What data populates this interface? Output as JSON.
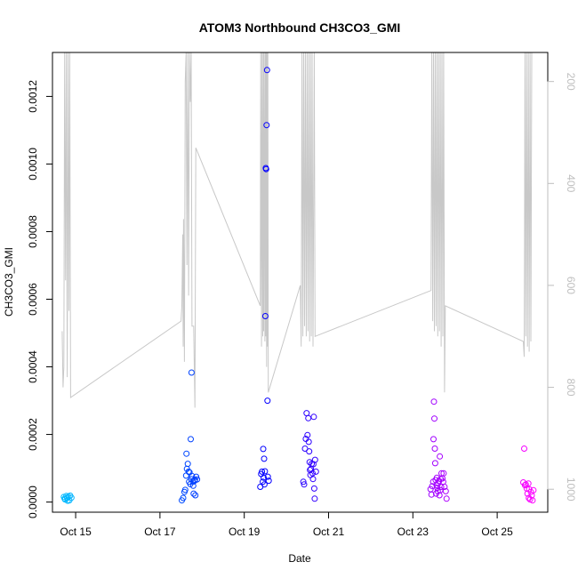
{
  "chart_data": {
    "type": "scatter",
    "title": "ATOM3 Northbound CH3CO3_GMI",
    "xlabel": "Date",
    "ylabel": "CH3CO3_GMI",
    "x_unit": "day of October",
    "xlim": [
      14.45,
      26.2
    ],
    "ylim": [
      -3e-05,
      0.00133
    ],
    "x_ticks": [
      {
        "value": 15,
        "label": "Oct 15"
      },
      {
        "value": 17,
        "label": "Oct 17"
      },
      {
        "value": 19,
        "label": "Oct 19"
      },
      {
        "value": 21,
        "label": "Oct 21"
      },
      {
        "value": 23,
        "label": "Oct 23"
      },
      {
        "value": 25,
        "label": "Oct 25"
      }
    ],
    "y_ticks": [
      {
        "value": 0.0,
        "label": "0.0000"
      },
      {
        "value": 0.0002,
        "label": "0.0002"
      },
      {
        "value": 0.0004,
        "label": "0.0004"
      },
      {
        "value": 0.0006,
        "label": "0.0006"
      },
      {
        "value": 0.0008,
        "label": "0.0008"
      },
      {
        "value": 0.001,
        "label": "0.0010"
      },
      {
        "value": 0.0012,
        "label": "0.0012"
      }
    ],
    "secondary_axis": {
      "position": "right",
      "reversed": true,
      "color": "#bebebe",
      "ylim": [
        1045,
        143
      ],
      "ticks": [
        {
          "value": 200,
          "label": "200"
        },
        {
          "value": 400,
          "label": "400"
        },
        {
          "value": 600,
          "label": "600"
        },
        {
          "value": 800,
          "label": "800"
        },
        {
          "value": 1000,
          "label": "1000"
        }
      ]
    },
    "series": [
      {
        "kind": "points",
        "color_scale": [
          "#00bfff",
          "#0000ff",
          "#ff00ff"
        ],
        "color_domain": [
          14.6,
          19.4,
          25.9
        ],
        "points": [
          [
            14.72,
            1.5e-05
          ],
          [
            14.75,
            8e-06
          ],
          [
            14.78,
            1.8e-05
          ],
          [
            14.8,
            1.2e-05
          ],
          [
            14.83,
            1.6e-05
          ],
          [
            14.85,
            5e-06
          ],
          [
            14.87,
            1.9e-05
          ],
          [
            14.74,
            1e-05
          ],
          [
            14.9,
            1.3e-05
          ],
          [
            14.81,
            4e-06
          ],
          [
            17.52,
            5e-06
          ],
          [
            17.55,
            1.2e-05
          ],
          [
            17.58,
            3e-05
          ],
          [
            17.6,
            3.6e-05
          ],
          [
            17.62,
            7.8e-05
          ],
          [
            17.63,
            0.000143
          ],
          [
            17.64,
            9.8e-05
          ],
          [
            17.66,
            0.000113
          ],
          [
            17.68,
            9e-05
          ],
          [
            17.69,
            6e-05
          ],
          [
            17.7,
            8.8e-05
          ],
          [
            17.72,
            5.3e-05
          ],
          [
            17.73,
            0.000186
          ],
          [
            17.74,
            6.8e-05
          ],
          [
            17.75,
            0.000383
          ],
          [
            17.76,
            7.7e-05
          ],
          [
            17.78,
            6e-05
          ],
          [
            17.79,
            4.8e-05
          ],
          [
            17.8,
            2.5e-05
          ],
          [
            17.82,
            6.3e-05
          ],
          [
            17.83,
            6.6e-05
          ],
          [
            17.84,
            2e-05
          ],
          [
            17.86,
            7.5e-05
          ],
          [
            17.88,
            6.7e-05
          ],
          [
            19.38,
            4.5e-05
          ],
          [
            19.4,
            8.3e-05
          ],
          [
            19.42,
            9e-05
          ],
          [
            19.44,
            6e-05
          ],
          [
            19.45,
            0.000157
          ],
          [
            19.46,
            7.2e-05
          ],
          [
            19.47,
            0.000128
          ],
          [
            19.48,
            5.2e-05
          ],
          [
            19.49,
            9.1e-05
          ],
          [
            19.5,
            0.00055
          ],
          [
            19.51,
            0.000988
          ],
          [
            19.52,
            0.000985
          ],
          [
            19.53,
            0.001115
          ],
          [
            19.54,
            0.001278
          ],
          [
            19.55,
            0.0003
          ],
          [
            19.56,
            7.5e-05
          ],
          [
            19.58,
            6.3e-05
          ],
          [
            20.4,
            6e-05
          ],
          [
            20.42,
            5.2e-05
          ],
          [
            20.44,
            0.000158
          ],
          [
            20.46,
            0.000187
          ],
          [
            20.48,
            0.000263
          ],
          [
            20.5,
            0.000198
          ],
          [
            20.52,
            0.000248
          ],
          [
            20.53,
            0.000178
          ],
          [
            20.54,
            0.00015
          ],
          [
            20.55,
            0.000118
          ],
          [
            20.56,
            9.5e-05
          ],
          [
            20.57,
            8e-05
          ],
          [
            20.58,
            9.8e-05
          ],
          [
            20.6,
            0.000113
          ],
          [
            20.62,
            8.5e-05
          ],
          [
            20.63,
            6.8e-05
          ],
          [
            20.64,
            0.000112
          ],
          [
            20.65,
            0.000252
          ],
          [
            20.66,
            4e-05
          ],
          [
            20.67,
            1e-05
          ],
          [
            20.68,
            0.000125
          ],
          [
            20.7,
            9e-05
          ],
          [
            23.42,
            3.8e-05
          ],
          [
            23.44,
            2.2e-05
          ],
          [
            23.46,
            4.7e-05
          ],
          [
            23.48,
            6e-05
          ],
          [
            23.49,
            0.000186
          ],
          [
            23.5,
            0.000297
          ],
          [
            23.51,
            0.000247
          ],
          [
            23.52,
            0.000158
          ],
          [
            23.53,
            0.000115
          ],
          [
            23.54,
            6.5e-05
          ],
          [
            23.55,
            2.5e-05
          ],
          [
            23.56,
            5e-05
          ],
          [
            23.57,
            7.2e-05
          ],
          [
            23.58,
            4.2e-05
          ],
          [
            23.59,
            3.2e-05
          ],
          [
            23.6,
            5.5e-05
          ],
          [
            23.62,
            6.2e-05
          ],
          [
            23.63,
            2e-05
          ],
          [
            23.64,
            0.000135
          ],
          [
            23.65,
            3.5e-05
          ],
          [
            23.66,
            6.8e-05
          ],
          [
            23.67,
            4.5e-05
          ],
          [
            23.68,
            8.5e-05
          ],
          [
            23.7,
            7e-05
          ],
          [
            23.72,
            6e-05
          ],
          [
            23.73,
            8.5e-05
          ],
          [
            23.75,
            4.5e-05
          ],
          [
            23.78,
            3.2e-05
          ],
          [
            23.8,
            1e-05
          ],
          [
            25.62,
            5.8e-05
          ],
          [
            25.64,
            0.000158
          ],
          [
            25.66,
            5e-05
          ],
          [
            25.68,
            5.2e-05
          ],
          [
            25.7,
            4e-05
          ],
          [
            25.72,
            2.5e-05
          ],
          [
            25.74,
            5.5e-05
          ],
          [
            25.75,
            1.2e-05
          ],
          [
            25.76,
            3.8e-05
          ],
          [
            25.78,
            8e-06
          ],
          [
            25.8,
            3e-05
          ],
          [
            25.82,
            2e-05
          ],
          [
            25.84,
            5e-06
          ],
          [
            25.86,
            3.5e-05
          ]
        ]
      },
      {
        "kind": "line",
        "axis": "secondary",
        "color": "#c8c8c8",
        "points": [
          [
            14.68,
            690
          ],
          [
            14.7,
            800
          ],
          [
            14.72,
            760
          ],
          [
            14.74,
            143
          ],
          [
            14.76,
            590
          ],
          [
            14.78,
            143
          ],
          [
            14.8,
            780
          ],
          [
            14.82,
            143
          ],
          [
            14.84,
            650
          ],
          [
            14.86,
            143
          ],
          [
            14.88,
            820
          ],
          [
            17.5,
            670
          ],
          [
            17.52,
            640
          ],
          [
            17.54,
            500
          ],
          [
            17.55,
            720
          ],
          [
            17.56,
            470
          ],
          [
            17.58,
            750
          ],
          [
            17.6,
            200
          ],
          [
            17.62,
            143
          ],
          [
            17.64,
            560
          ],
          [
            17.66,
            143
          ],
          [
            17.68,
            620
          ],
          [
            17.7,
            143
          ],
          [
            17.72,
            240
          ],
          [
            17.74,
            143
          ],
          [
            17.76,
            680
          ],
          [
            17.8,
            680
          ],
          [
            17.83,
            840
          ],
          [
            17.85,
            330
          ],
          [
            19.38,
            640
          ],
          [
            19.39,
            143
          ],
          [
            19.41,
            720
          ],
          [
            19.42,
            143
          ],
          [
            19.44,
            700
          ],
          [
            19.45,
            143
          ],
          [
            19.46,
            690
          ],
          [
            19.47,
            143
          ],
          [
            19.49,
            710
          ],
          [
            19.5,
            143
          ],
          [
            19.51,
            700
          ],
          [
            19.52,
            143
          ],
          [
            19.53,
            760
          ],
          [
            19.54,
            143
          ],
          [
            19.55,
            720
          ],
          [
            19.56,
            143
          ],
          [
            19.57,
            810
          ],
          [
            20.33,
            600
          ],
          [
            20.35,
            720
          ],
          [
            20.37,
            143
          ],
          [
            20.39,
            700
          ],
          [
            20.41,
            143
          ],
          [
            20.43,
            680
          ],
          [
            20.45,
            143
          ],
          [
            20.47,
            700
          ],
          [
            20.49,
            143
          ],
          [
            20.51,
            690
          ],
          [
            20.53,
            143
          ],
          [
            20.55,
            710
          ],
          [
            20.57,
            143
          ],
          [
            20.59,
            700
          ],
          [
            20.61,
            143
          ],
          [
            20.63,
            720
          ],
          [
            20.66,
            143
          ],
          [
            20.68,
            700
          ],
          [
            23.43,
            610
          ],
          [
            23.45,
            143
          ],
          [
            23.47,
            670
          ],
          [
            23.49,
            143
          ],
          [
            23.51,
            690
          ],
          [
            23.53,
            143
          ],
          [
            23.55,
            680
          ],
          [
            23.57,
            143
          ],
          [
            23.59,
            700
          ],
          [
            23.61,
            143
          ],
          [
            23.63,
            690
          ],
          [
            23.65,
            143
          ],
          [
            23.67,
            720
          ],
          [
            23.69,
            143
          ],
          [
            23.71,
            700
          ],
          [
            23.73,
            143
          ],
          [
            23.75,
            810
          ],
          [
            23.77,
            640
          ],
          [
            25.62,
            710
          ],
          [
            25.64,
            740
          ],
          [
            25.66,
            143
          ],
          [
            25.68,
            700
          ],
          [
            25.7,
            143
          ],
          [
            25.72,
            720
          ],
          [
            25.74,
            143
          ],
          [
            25.76,
            730
          ],
          [
            25.78,
            143
          ],
          [
            25.8,
            710
          ],
          [
            25.82,
            143
          ]
        ]
      }
    ]
  }
}
